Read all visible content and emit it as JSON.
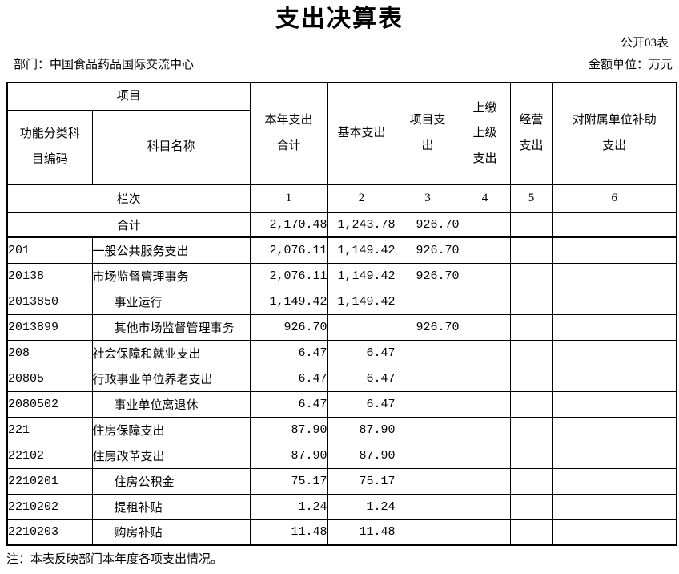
{
  "page": {
    "title": "支出决算表",
    "doc_label": "公开03表",
    "department_label": "部门：中国食品药品国际交流中心",
    "unit_label": "金额单位：万元",
    "note": "注：本表反映部门本年度各项支出情况。"
  },
  "table": {
    "header": {
      "group_label": "项目",
      "code_label": "功能分类科\n目编码",
      "name_label": "科目名称",
      "col_labels": [
        "本年支出\n合计",
        "基本支出",
        "项目支\n出",
        "上缴\n上级\n支出",
        "经营\n支出",
        "对附属单位补助\n支出"
      ],
      "lanci_label": "栏次",
      "lanci_numbers": [
        "1",
        "2",
        "3",
        "4",
        "5",
        "6"
      ]
    },
    "total_row": {
      "label": "合计",
      "values": [
        "2,170.48",
        "1,243.78",
        "926.70",
        "",
        "",
        ""
      ]
    },
    "rows": [
      {
        "code": "201",
        "name": "一般公共服务支出",
        "indent": 0,
        "values": [
          "2,076.11",
          "1,149.42",
          "926.70",
          "",
          "",
          ""
        ]
      },
      {
        "code": "20138",
        "name": "市场监督管理事务",
        "indent": 0,
        "values": [
          "2,076.11",
          "1,149.42",
          "926.70",
          "",
          "",
          ""
        ]
      },
      {
        "code": "2013850",
        "name": "事业运行",
        "indent": 1,
        "values": [
          "1,149.42",
          "1,149.42",
          "",
          "",
          "",
          ""
        ]
      },
      {
        "code": "2013899",
        "name": "其他市场监督管理事务",
        "indent": 1,
        "values": [
          "926.70",
          "",
          "926.70",
          "",
          "",
          ""
        ]
      },
      {
        "code": "208",
        "name": "社会保障和就业支出",
        "indent": 0,
        "values": [
          "6.47",
          "6.47",
          "",
          "",
          "",
          ""
        ]
      },
      {
        "code": "20805",
        "name": "行政事业单位养老支出",
        "indent": 0,
        "values": [
          "6.47",
          "6.47",
          "",
          "",
          "",
          ""
        ]
      },
      {
        "code": "2080502",
        "name": "事业单位离退休",
        "indent": 1,
        "values": [
          "6.47",
          "6.47",
          "",
          "",
          "",
          ""
        ]
      },
      {
        "code": "221",
        "name": "住房保障支出",
        "indent": 0,
        "values": [
          "87.90",
          "87.90",
          "",
          "",
          "",
          ""
        ]
      },
      {
        "code": "22102",
        "name": "住房改革支出",
        "indent": 0,
        "values": [
          "87.90",
          "87.90",
          "",
          "",
          "",
          ""
        ]
      },
      {
        "code": "2210201",
        "name": "住房公积金",
        "indent": 1,
        "values": [
          "75.17",
          "75.17",
          "",
          "",
          "",
          ""
        ]
      },
      {
        "code": "2210202",
        "name": "提租补贴",
        "indent": 1,
        "values": [
          "1.24",
          "1.24",
          "",
          "",
          "",
          ""
        ]
      },
      {
        "code": "2210203",
        "name": "购房补贴",
        "indent": 1,
        "values": [
          "11.48",
          "11.48",
          "",
          "",
          "",
          ""
        ]
      }
    ]
  }
}
